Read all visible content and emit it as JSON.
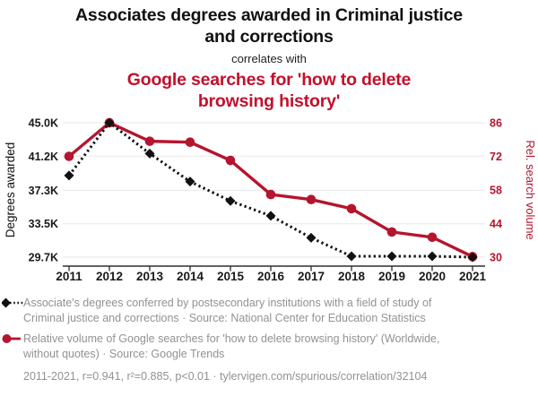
{
  "header": {
    "title": "Associates degrees awarded in Criminal justice and corrections",
    "connector": "correlates with",
    "red_title": "Google searches for 'how to delete browsing history'"
  },
  "colors": {
    "black": "#111111",
    "red_title": "#c2102d",
    "red_line": "#b5152e",
    "grid": "#ececec",
    "axis": "#2e2e2e",
    "muted_text": "#929292"
  },
  "chart_data": {
    "type": "line",
    "x": [
      2011,
      2012,
      2013,
      2014,
      2015,
      2016,
      2017,
      2018,
      2019,
      2020,
      2021
    ],
    "x_ticks": [
      "2011",
      "2012",
      "2013",
      "2014",
      "2015",
      "2016",
      "2017",
      "2018",
      "2019",
      "2020",
      "2021"
    ],
    "series": [
      {
        "name": "Associate's degrees in Criminal justice and corrections",
        "axis": "left",
        "units": "thousand degrees",
        "color": "#111111",
        "line_style": "dotted",
        "marker": "diamond",
        "values": [
          39.0,
          45.0,
          41.5,
          38.3,
          36.1,
          34.4,
          31.9,
          29.8,
          29.8,
          29.8,
          29.7
        ]
      },
      {
        "name": "Relative volume of Google searches for 'how to delete browsing history'",
        "axis": "right",
        "units": "relative search volume",
        "color": "#b5152e",
        "line_style": "solid",
        "marker": "circle",
        "values": [
          72,
          86,
          78.3,
          77.9,
          70.3,
          56.1,
          54.0,
          50.2,
          40.5,
          38.3,
          30.2
        ]
      }
    ],
    "left_axis": {
      "label": "Degrees awarded",
      "ticks": [
        "45.0K",
        "41.2K",
        "37.3K",
        "33.5K",
        "29.7K"
      ],
      "tick_values": [
        45.0,
        41.2,
        37.3,
        33.5,
        29.7
      ],
      "range": [
        29.7,
        45.0
      ]
    },
    "right_axis": {
      "label": "Rel. search volume",
      "ticks": [
        "86",
        "72",
        "58",
        "44",
        "30"
      ],
      "tick_values": [
        86,
        72,
        58,
        44,
        30
      ],
      "range": [
        30,
        86
      ]
    },
    "grid": true,
    "legend_position": "bottom"
  },
  "legend": [
    {
      "marker": "black-diamond-dotted",
      "text": "Associate's degrees conferred by postsecondary institutions with a field of study of Criminal justice and corrections · Source: National Center for Education Statistics"
    },
    {
      "marker": "red-circle-solid",
      "text": "Relative volume of Google searches for 'how to delete browsing history' (Worldwide, without quotes) · Source: Google Trends"
    }
  ],
  "footer": {
    "text": "2011-2021, r=0.941, r²=0.885, p<0.01 · tylervigen.com/spurious/correlation/32104"
  }
}
